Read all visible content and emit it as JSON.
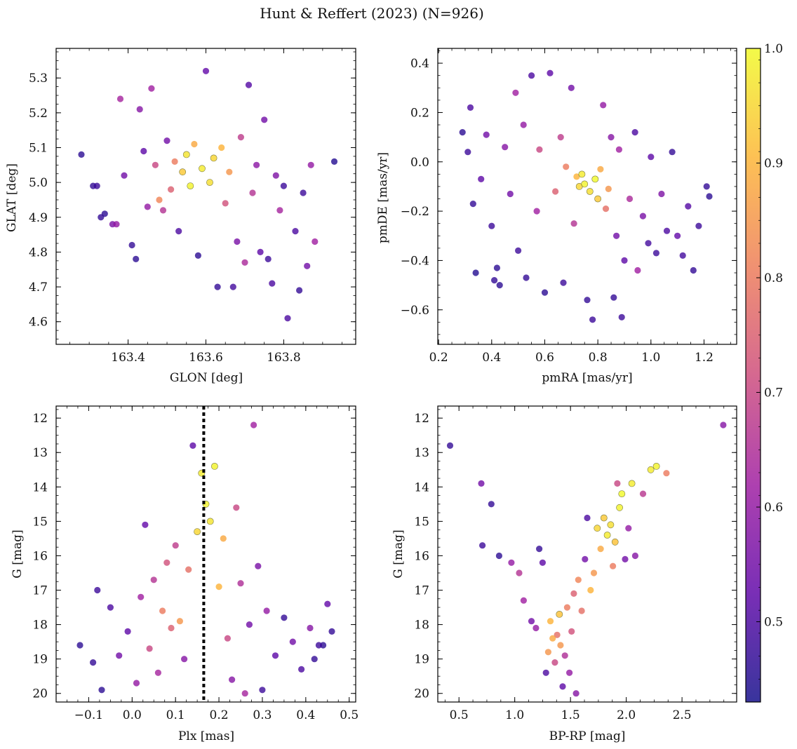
{
  "title": "Hunt & Reffert (2023) (N=926)",
  "colormap": {
    "name": "plasma",
    "stops": [
      "#0d0887",
      "#5c01a6",
      "#9c179e",
      "#cc4778",
      "#ed7953",
      "#fdb32f",
      "#f0f921"
    ],
    "alpha": 0.78,
    "range": [
      0.43,
      1.0
    ],
    "ticks": [
      "0.5",
      "0.6",
      "0.7",
      "0.8",
      "0.9",
      "1.0"
    ],
    "tick_values": [
      0.5,
      0.6,
      0.7,
      0.8,
      0.9,
      1.0
    ]
  },
  "chart_data": [
    {
      "type": "scatter",
      "id": "position",
      "xlabel": "GLON [deg]",
      "ylabel": "GLAT [deg]",
      "xlim": [
        163.215,
        163.985
      ],
      "ylim": [
        4.535,
        5.385
      ],
      "xticks": [
        163.4,
        163.6,
        163.8
      ],
      "xtick_labels": [
        "163.4",
        "163.6",
        "163.8"
      ],
      "yticks": [
        4.6,
        4.7,
        4.8,
        4.9,
        5.0,
        5.1,
        5.2,
        5.3
      ],
      "ytick_labels": [
        "4.6",
        "4.7",
        "4.8",
        "4.9",
        "5.0",
        "5.1",
        "5.2",
        "5.3"
      ],
      "invert_y": false,
      "points": [
        [
          163.28,
          5.08,
          0.46
        ],
        [
          163.31,
          4.99,
          0.47
        ],
        [
          163.32,
          4.99,
          0.48
        ],
        [
          163.33,
          4.9,
          0.47
        ],
        [
          163.34,
          4.91,
          0.46
        ],
        [
          163.36,
          4.88,
          0.56
        ],
        [
          163.37,
          4.88,
          0.6
        ],
        [
          163.38,
          5.24,
          0.63
        ],
        [
          163.39,
          5.02,
          0.55
        ],
        [
          163.41,
          4.82,
          0.47
        ],
        [
          163.42,
          4.78,
          0.46
        ],
        [
          163.43,
          5.21,
          0.58
        ],
        [
          163.44,
          5.09,
          0.52
        ],
        [
          163.45,
          4.93,
          0.6
        ],
        [
          163.46,
          5.27,
          0.62
        ],
        [
          163.47,
          5.05,
          0.7
        ],
        [
          163.48,
          4.95,
          0.82
        ],
        [
          163.49,
          4.92,
          0.66
        ],
        [
          163.5,
          5.12,
          0.55
        ],
        [
          163.51,
          4.98,
          0.75
        ],
        [
          163.52,
          5.06,
          0.8
        ],
        [
          163.53,
          4.86,
          0.5
        ],
        [
          163.54,
          5.03,
          0.93
        ],
        [
          163.55,
          5.08,
          0.97
        ],
        [
          163.56,
          4.99,
          0.99
        ],
        [
          163.57,
          5.11,
          0.88
        ],
        [
          163.58,
          4.79,
          0.46
        ],
        [
          163.59,
          5.04,
          0.98
        ],
        [
          163.6,
          5.32,
          0.53
        ],
        [
          163.61,
          5.0,
          0.96
        ],
        [
          163.62,
          5.07,
          0.95
        ],
        [
          163.63,
          4.7,
          0.47
        ],
        [
          163.64,
          5.1,
          0.9
        ],
        [
          163.65,
          4.94,
          0.72
        ],
        [
          163.66,
          5.03,
          0.85
        ],
        [
          163.67,
          4.7,
          0.49
        ],
        [
          163.68,
          4.83,
          0.56
        ],
        [
          163.69,
          5.13,
          0.68
        ],
        [
          163.7,
          4.77,
          0.64
        ],
        [
          163.71,
          5.28,
          0.51
        ],
        [
          163.72,
          4.97,
          0.66
        ],
        [
          163.73,
          5.05,
          0.59
        ],
        [
          163.74,
          4.8,
          0.52
        ],
        [
          163.75,
          5.18,
          0.55
        ],
        [
          163.76,
          4.78,
          0.48
        ],
        [
          163.77,
          4.71,
          0.5
        ],
        [
          163.78,
          5.02,
          0.57
        ],
        [
          163.79,
          4.92,
          0.63
        ],
        [
          163.8,
          4.99,
          0.48
        ],
        [
          163.81,
          4.61,
          0.5
        ],
        [
          163.83,
          4.86,
          0.5
        ],
        [
          163.84,
          4.69,
          0.47
        ],
        [
          163.85,
          4.97,
          0.48
        ],
        [
          163.86,
          4.76,
          0.55
        ],
        [
          163.87,
          5.05,
          0.6
        ],
        [
          163.88,
          4.83,
          0.62
        ],
        [
          163.93,
          5.06,
          0.45
        ]
      ]
    },
    {
      "type": "scatter",
      "id": "proper-motion",
      "xlabel": "pmRA [mas/yr]",
      "ylabel": "pmDE [mas/yr]",
      "xlim": [
        0.197,
        1.323
      ],
      "ylim": [
        -0.74,
        0.46
      ],
      "xticks": [
        0.2,
        0.4,
        0.6,
        0.8,
        1.0,
        1.2
      ],
      "xtick_labels": [
        "0.2",
        "0.4",
        "0.6",
        "0.8",
        "1.0",
        "1.2"
      ],
      "yticks": [
        -0.6,
        -0.4,
        -0.2,
        0.0,
        0.2,
        0.4
      ],
      "ytick_labels": [
        "−0.6",
        "−0.4",
        "−0.2",
        "0.0",
        "0.2",
        "0.4"
      ],
      "invert_y": false,
      "points": [
        [
          0.29,
          0.12,
          0.46
        ],
        [
          0.31,
          0.04,
          0.48
        ],
        [
          0.32,
          0.22,
          0.5
        ],
        [
          0.33,
          -0.17,
          0.47
        ],
        [
          0.34,
          -0.45,
          0.45
        ],
        [
          0.36,
          -0.07,
          0.52
        ],
        [
          0.38,
          0.11,
          0.55
        ],
        [
          0.4,
          -0.26,
          0.48
        ],
        [
          0.41,
          -0.48,
          0.47
        ],
        [
          0.42,
          -0.43,
          0.46
        ],
        [
          0.43,
          -0.5,
          0.46
        ],
        [
          0.45,
          0.06,
          0.58
        ],
        [
          0.47,
          -0.13,
          0.55
        ],
        [
          0.49,
          0.28,
          0.62
        ],
        [
          0.5,
          -0.36,
          0.48
        ],
        [
          0.52,
          0.15,
          0.6
        ],
        [
          0.53,
          -0.47,
          0.47
        ],
        [
          0.55,
          0.35,
          0.5
        ],
        [
          0.57,
          -0.2,
          0.62
        ],
        [
          0.58,
          0.05,
          0.7
        ],
        [
          0.6,
          -0.53,
          0.46
        ],
        [
          0.62,
          0.36,
          0.52
        ],
        [
          0.64,
          -0.12,
          0.75
        ],
        [
          0.66,
          0.1,
          0.68
        ],
        [
          0.67,
          -0.49,
          0.48
        ],
        [
          0.68,
          -0.02,
          0.8
        ],
        [
          0.7,
          0.3,
          0.55
        ],
        [
          0.71,
          -0.25,
          0.66
        ],
        [
          0.72,
          -0.06,
          0.9
        ],
        [
          0.73,
          -0.1,
          0.95
        ],
        [
          0.74,
          -0.05,
          0.98
        ],
        [
          0.75,
          -0.09,
          0.99
        ],
        [
          0.76,
          -0.56,
          0.47
        ],
        [
          0.77,
          -0.12,
          0.96
        ],
        [
          0.78,
          -0.64,
          0.48
        ],
        [
          0.79,
          -0.07,
          1.0
        ],
        [
          0.8,
          -0.15,
          0.93
        ],
        [
          0.81,
          -0.03,
          0.88
        ],
        [
          0.82,
          0.23,
          0.6
        ],
        [
          0.83,
          -0.19,
          0.78
        ],
        [
          0.84,
          -0.11,
          0.85
        ],
        [
          0.85,
          0.1,
          0.58
        ],
        [
          0.86,
          -0.55,
          0.47
        ],
        [
          0.87,
          -0.3,
          0.55
        ],
        [
          0.88,
          0.05,
          0.62
        ],
        [
          0.89,
          -0.63,
          0.48
        ],
        [
          0.9,
          -0.4,
          0.52
        ],
        [
          0.92,
          -0.15,
          0.64
        ],
        [
          0.94,
          0.12,
          0.5
        ],
        [
          0.95,
          -0.44,
          0.62
        ],
        [
          0.97,
          -0.22,
          0.56
        ],
        [
          0.99,
          -0.33,
          0.49
        ],
        [
          1.0,
          0.02,
          0.52
        ],
        [
          1.02,
          -0.37,
          0.48
        ],
        [
          1.04,
          -0.13,
          0.57
        ],
        [
          1.06,
          -0.28,
          0.5
        ],
        [
          1.08,
          0.04,
          0.47
        ],
        [
          1.1,
          -0.3,
          0.53
        ],
        [
          1.12,
          -0.38,
          0.49
        ],
        [
          1.14,
          -0.18,
          0.51
        ],
        [
          1.16,
          -0.44,
          0.47
        ],
        [
          1.18,
          -0.26,
          0.48
        ],
        [
          1.21,
          -0.1,
          0.47
        ],
        [
          1.22,
          -0.14,
          0.46
        ]
      ]
    },
    {
      "type": "scatter",
      "id": "parallax-magnitude",
      "xlabel": "Plx [mas]",
      "ylabel": "G [mag]",
      "xlim": [
        -0.175,
        0.515
      ],
      "ylim": [
        20.25,
        11.65
      ],
      "xticks": [
        -0.1,
        0.0,
        0.1,
        0.2,
        0.3,
        0.4,
        0.5
      ],
      "xtick_labels": [
        "−0.1",
        "0.0",
        "0.1",
        "0.2",
        "0.3",
        "0.4",
        "0.5"
      ],
      "yticks": [
        12,
        13,
        14,
        15,
        16,
        17,
        18,
        19,
        20
      ],
      "ytick_labels": [
        "12",
        "13",
        "14",
        "15",
        "16",
        "17",
        "18",
        "19",
        "20"
      ],
      "invert_y": true,
      "vline": 0.165,
      "points": [
        [
          -0.12,
          18.6,
          0.46
        ],
        [
          -0.09,
          19.1,
          0.47
        ],
        [
          -0.08,
          17.0,
          0.48
        ],
        [
          -0.07,
          19.9,
          0.46
        ],
        [
          -0.05,
          17.5,
          0.5
        ],
        [
          -0.03,
          18.9,
          0.55
        ],
        [
          -0.01,
          18.2,
          0.52
        ],
        [
          0.01,
          19.7,
          0.6
        ],
        [
          0.02,
          17.2,
          0.62
        ],
        [
          0.03,
          15.1,
          0.53
        ],
        [
          0.04,
          18.7,
          0.7
        ],
        [
          0.05,
          16.7,
          0.66
        ],
        [
          0.06,
          19.4,
          0.63
        ],
        [
          0.07,
          17.6,
          0.8
        ],
        [
          0.08,
          16.2,
          0.72
        ],
        [
          0.09,
          18.1,
          0.75
        ],
        [
          0.1,
          15.7,
          0.68
        ],
        [
          0.11,
          17.9,
          0.85
        ],
        [
          0.12,
          19.0,
          0.58
        ],
        [
          0.13,
          16.4,
          0.78
        ],
        [
          0.14,
          12.8,
          0.52
        ],
        [
          0.15,
          15.3,
          0.95
        ],
        [
          0.16,
          13.6,
          0.98
        ],
        [
          0.17,
          14.5,
          0.99
        ],
        [
          0.18,
          15.0,
          0.97
        ],
        [
          0.19,
          13.4,
          0.99
        ],
        [
          0.2,
          16.9,
          0.9
        ],
        [
          0.21,
          15.5,
          0.88
        ],
        [
          0.22,
          18.4,
          0.7
        ],
        [
          0.23,
          19.6,
          0.58
        ],
        [
          0.24,
          14.6,
          0.7
        ],
        [
          0.25,
          16.8,
          0.65
        ],
        [
          0.26,
          20.0,
          0.63
        ],
        [
          0.27,
          18.0,
          0.55
        ],
        [
          0.28,
          12.2,
          0.62
        ],
        [
          0.29,
          16.3,
          0.56
        ],
        [
          0.3,
          19.9,
          0.48
        ],
        [
          0.31,
          17.6,
          0.6
        ],
        [
          0.33,
          18.9,
          0.52
        ],
        [
          0.35,
          17.8,
          0.47
        ],
        [
          0.37,
          18.5,
          0.55
        ],
        [
          0.39,
          19.3,
          0.5
        ],
        [
          0.41,
          18.1,
          0.58
        ],
        [
          0.42,
          19.0,
          0.47
        ],
        [
          0.43,
          18.6,
          0.48
        ],
        [
          0.44,
          18.6,
          0.46
        ],
        [
          0.45,
          17.4,
          0.53
        ],
        [
          0.46,
          18.2,
          0.47
        ]
      ]
    },
    {
      "type": "scatter",
      "id": "color-magnitude",
      "xlabel": "BP-RP [mag]",
      "ylabel": "G [mag]",
      "xlim": [
        0.31,
        2.99
      ],
      "ylim": [
        20.25,
        11.65
      ],
      "xticks": [
        0.5,
        1.0,
        1.5,
        2.0,
        2.5
      ],
      "xtick_labels": [
        "0.5",
        "1.0",
        "1.5",
        "2.0",
        "2.5"
      ],
      "yticks": [
        12,
        13,
        14,
        15,
        16,
        17,
        18,
        19,
        20
      ],
      "ytick_labels": [
        "12",
        "13",
        "14",
        "15",
        "16",
        "17",
        "18",
        "19",
        "20"
      ],
      "invert_y": true,
      "points": [
        [
          0.42,
          12.8,
          0.47
        ],
        [
          0.7,
          13.9,
          0.55
        ],
        [
          0.71,
          15.7,
          0.48
        ],
        [
          0.79,
          14.5,
          0.47
        ],
        [
          0.86,
          16.0,
          0.46
        ],
        [
          0.97,
          16.2,
          0.6
        ],
        [
          1.04,
          16.5,
          0.66
        ],
        [
          1.08,
          17.3,
          0.62
        ],
        [
          1.15,
          17.9,
          0.55
        ],
        [
          1.19,
          18.1,
          0.6
        ],
        [
          1.22,
          15.8,
          0.47
        ],
        [
          1.25,
          16.2,
          0.52
        ],
        [
          1.28,
          19.4,
          0.5
        ],
        [
          1.3,
          18.8,
          0.85
        ],
        [
          1.32,
          17.9,
          0.9
        ],
        [
          1.34,
          18.4,
          0.88
        ],
        [
          1.36,
          19.1,
          0.7
        ],
        [
          1.38,
          18.3,
          0.78
        ],
        [
          1.4,
          17.7,
          0.92
        ],
        [
          1.41,
          18.6,
          0.85
        ],
        [
          1.43,
          19.8,
          0.52
        ],
        [
          1.45,
          18.9,
          0.65
        ],
        [
          1.47,
          17.5,
          0.8
        ],
        [
          1.49,
          19.4,
          0.6
        ],
        [
          1.51,
          18.2,
          0.72
        ],
        [
          1.53,
          17.1,
          0.75
        ],
        [
          1.55,
          20.0,
          0.58
        ],
        [
          1.57,
          16.7,
          0.82
        ],
        [
          1.6,
          17.6,
          0.78
        ],
        [
          1.63,
          16.1,
          0.55
        ],
        [
          1.65,
          14.9,
          0.5
        ],
        [
          1.68,
          17.0,
          0.9
        ],
        [
          1.71,
          16.5,
          0.85
        ],
        [
          1.74,
          15.2,
          0.95
        ],
        [
          1.77,
          15.8,
          0.88
        ],
        [
          1.8,
          14.9,
          0.93
        ],
        [
          1.83,
          15.4,
          0.98
        ],
        [
          1.86,
          15.1,
          0.96
        ],
        [
          1.88,
          16.3,
          0.8
        ],
        [
          1.9,
          15.6,
          0.92
        ],
        [
          1.92,
          13.9,
          0.7
        ],
        [
          1.94,
          14.6,
          0.99
        ],
        [
          1.96,
          14.2,
          1.0
        ],
        [
          1.99,
          16.1,
          0.55
        ],
        [
          2.02,
          15.2,
          0.6
        ],
        [
          2.05,
          13.9,
          0.98
        ],
        [
          2.08,
          16.0,
          0.58
        ],
        [
          2.15,
          14.2,
          0.67
        ],
        [
          2.22,
          13.5,
          0.98
        ],
        [
          2.27,
          13.4,
          0.99
        ],
        [
          2.36,
          13.6,
          0.8
        ],
        [
          2.87,
          12.2,
          0.58
        ]
      ]
    }
  ]
}
